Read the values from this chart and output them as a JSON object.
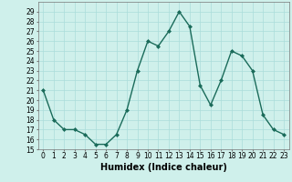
{
  "x": [
    0,
    1,
    2,
    3,
    4,
    5,
    6,
    7,
    8,
    9,
    10,
    11,
    12,
    13,
    14,
    15,
    16,
    17,
    18,
    19,
    20,
    21,
    22,
    23
  ],
  "y": [
    21,
    18,
    17,
    17,
    16.5,
    15.5,
    15.5,
    16.5,
    19,
    23,
    26,
    25.5,
    27,
    29,
    27.5,
    21.5,
    19.5,
    22,
    25,
    24.5,
    23,
    18.5,
    17,
    16.5
  ],
  "line_color": "#1a6b5a",
  "marker": "D",
  "marker_size": 2,
  "bg_color": "#cff0eb",
  "grid_color": "#aaddda",
  "xlabel": "Humidex (Indice chaleur)",
  "xlabel_fontsize": 7,
  "ylim": [
    15,
    30
  ],
  "xlim": [
    -0.5,
    23.5
  ],
  "yticks": [
    15,
    16,
    17,
    18,
    19,
    20,
    21,
    22,
    23,
    24,
    25,
    26,
    27,
    28,
    29
  ],
  "xticks": [
    0,
    1,
    2,
    3,
    4,
    5,
    6,
    7,
    8,
    9,
    10,
    11,
    12,
    13,
    14,
    15,
    16,
    17,
    18,
    19,
    20,
    21,
    22,
    23
  ],
  "tick_fontsize": 5.5,
  "line_width": 1.0
}
